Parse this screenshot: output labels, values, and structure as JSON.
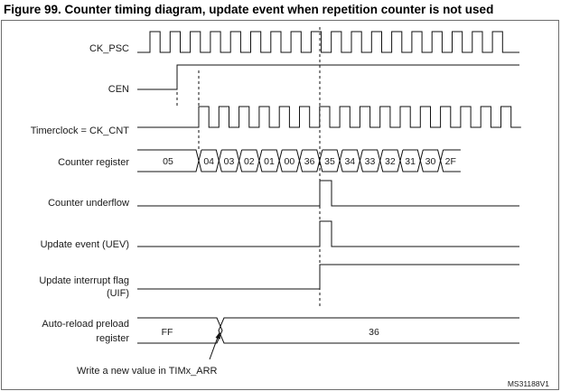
{
  "title": "Figure 99. Counter timing diagram, update event when repetition counter is not used",
  "signals": {
    "ck_psc": "CK_PSC",
    "cen": "CEN",
    "timerclock": "Timerclock = CK_CNT",
    "counter_register": "Counter register",
    "counter_underflow": "Counter underflow",
    "update_event": "Update event (UEV)",
    "uif_line1": "Update interrupt flag",
    "uif_line2": "(UIF)",
    "arr_line1": "Auto-reload preload",
    "arr_line2": "register"
  },
  "counter_values": [
    "05",
    "04",
    "03",
    "02",
    "01",
    "00",
    "36",
    "35",
    "34",
    "33",
    "32",
    "31",
    "30",
    "2F"
  ],
  "arr_values": [
    "FF",
    "36"
  ],
  "annotation": "Write a new value in TIMx_ARR",
  "figure_id": "MS31188V1"
}
